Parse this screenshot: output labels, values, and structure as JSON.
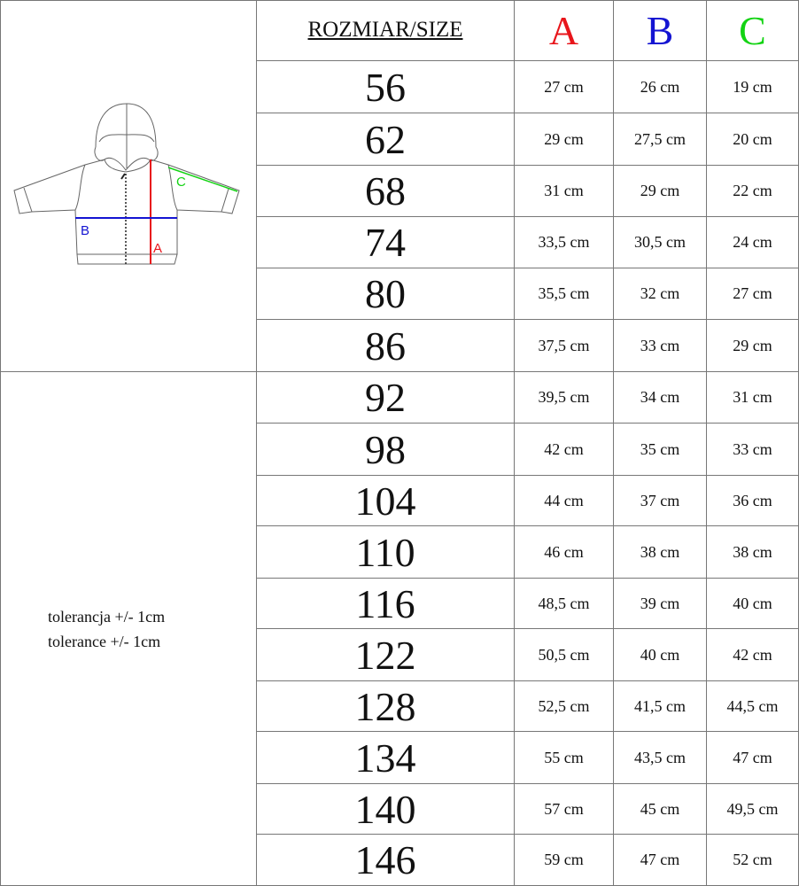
{
  "header": {
    "size_label": "ROZMIAR/SIZE",
    "col_a": "A",
    "col_b": "B",
    "col_c": "C"
  },
  "colors": {
    "A": "#e8151b",
    "B": "#1414d2",
    "C": "#13d313"
  },
  "diagram": {
    "label_a": "A",
    "label_b": "B",
    "label_c": "C"
  },
  "tolerance": [
    "tolerancja +/- 1cm",
    "tolerance +/- 1cm"
  ],
  "rows": [
    {
      "size": "56",
      "a": "27 cm",
      "b": "26 cm",
      "c": "19 cm"
    },
    {
      "size": "62",
      "a": "29 cm",
      "b": "27,5 cm",
      "c": "20 cm"
    },
    {
      "size": "68",
      "a": "31 cm",
      "b": "29 cm",
      "c": "22 cm"
    },
    {
      "size": "74",
      "a": "33,5 cm",
      "b": "30,5 cm",
      "c": "24 cm"
    },
    {
      "size": "80",
      "a": "35,5 cm",
      "b": "32 cm",
      "c": "27 cm"
    },
    {
      "size": "86",
      "a": "37,5 cm",
      "b": "33 cm",
      "c": "29 cm"
    },
    {
      "size": "92",
      "a": "39,5 cm",
      "b": "34 cm",
      "c": "31 cm"
    },
    {
      "size": "98",
      "a": "42 cm",
      "b": "35 cm",
      "c": "33 cm"
    },
    {
      "size": "104",
      "a": "44 cm",
      "b": "37 cm",
      "c": "36 cm"
    },
    {
      "size": "110",
      "a": "46 cm",
      "b": "38 cm",
      "c": "38 cm"
    },
    {
      "size": "116",
      "a": "48,5 cm",
      "b": "39 cm",
      "c": "40 cm"
    },
    {
      "size": "122",
      "a": "50,5 cm",
      "b": "40 cm",
      "c": "42 cm"
    },
    {
      "size": "128",
      "a": "52,5 cm",
      "b": "41,5 cm",
      "c": "44,5 cm"
    },
    {
      "size": "134",
      "a": "55 cm",
      "b": "43,5 cm",
      "c": "47 cm"
    },
    {
      "size": "140",
      "a": "57 cm",
      "b": "45 cm",
      "c": "49,5 cm"
    },
    {
      "size": "146",
      "a": "59 cm",
      "b": "47 cm",
      "c": "52 cm"
    }
  ]
}
